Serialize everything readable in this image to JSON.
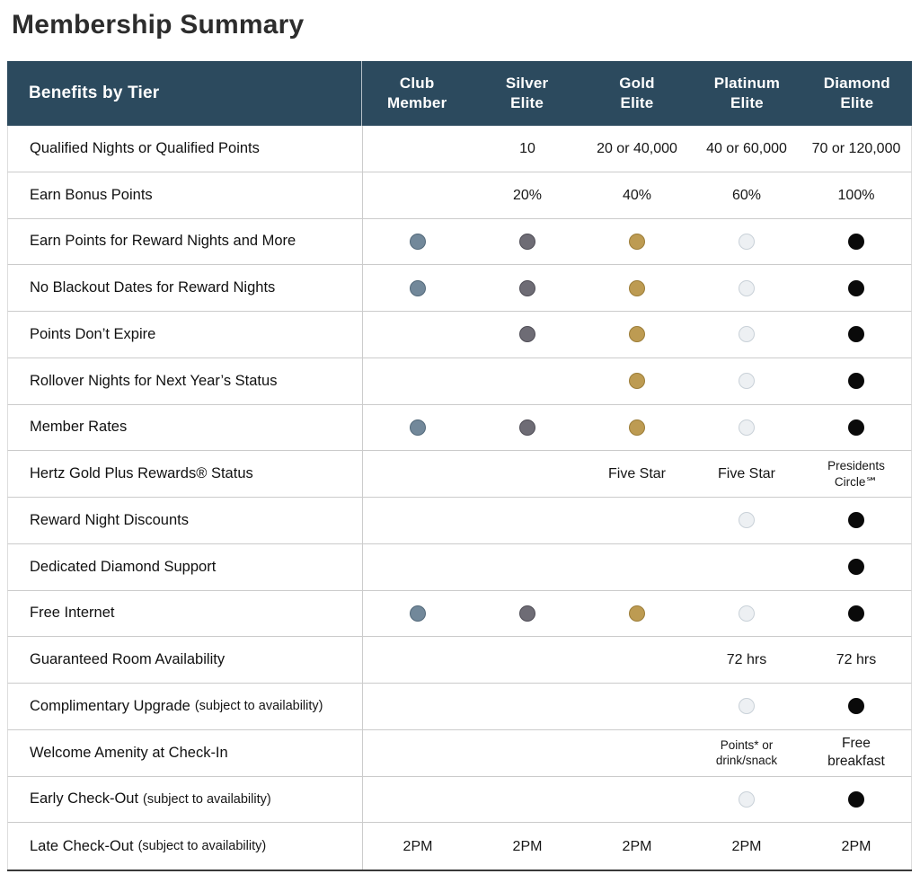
{
  "page": {
    "title": "Membership Summary"
  },
  "theme": {
    "header_bg": "#2C4A5E",
    "header_text": "#FFFFFF",
    "title_color": "#2D2D2D"
  },
  "table": {
    "header": {
      "benefits_label": "Benefits by Tier",
      "tiers": [
        {
          "id": "club",
          "lines": [
            "Club",
            "Member"
          ]
        },
        {
          "id": "silver",
          "lines": [
            "Silver",
            "Elite"
          ]
        },
        {
          "id": "gold",
          "lines": [
            "Gold",
            "Elite"
          ]
        },
        {
          "id": "platinum",
          "lines": [
            "Platinum",
            "Elite"
          ]
        },
        {
          "id": "diamond",
          "lines": [
            "Diamond",
            "Elite"
          ]
        }
      ]
    },
    "dot_colors": {
      "club": {
        "fill": "#72889A",
        "border": "#53697A"
      },
      "silver": {
        "fill": "#6E6C75",
        "border": "#4F4D56"
      },
      "gold": {
        "fill": "#BD9B52",
        "border": "#9C7D38"
      },
      "platinum": {
        "fill": "#EDF0F3",
        "border": "#C9D1D8"
      },
      "diamond": {
        "fill": "#0A0A0A",
        "border": "#0A0A0A"
      }
    },
    "rows": [
      {
        "label": "Qualified Nights or Qualified Points",
        "cells": [
          {
            "type": "empty"
          },
          {
            "type": "text",
            "lines": [
              "10"
            ]
          },
          {
            "type": "text",
            "lines": [
              "20 or 40,000"
            ]
          },
          {
            "type": "text",
            "lines": [
              "40 or 60,000"
            ]
          },
          {
            "type": "text",
            "lines": [
              "70 or 120,000"
            ]
          }
        ]
      },
      {
        "label": "Earn Bonus Points",
        "cells": [
          {
            "type": "empty"
          },
          {
            "type": "text",
            "lines": [
              "20%"
            ]
          },
          {
            "type": "text",
            "lines": [
              "40%"
            ]
          },
          {
            "type": "text",
            "lines": [
              "60%"
            ]
          },
          {
            "type": "text",
            "lines": [
              "100%"
            ]
          }
        ]
      },
      {
        "label": "Earn Points for Reward Nights and More",
        "cells": [
          {
            "type": "dot",
            "tier": "club"
          },
          {
            "type": "dot",
            "tier": "silver"
          },
          {
            "type": "dot",
            "tier": "gold"
          },
          {
            "type": "dot",
            "tier": "platinum"
          },
          {
            "type": "dot",
            "tier": "diamond"
          }
        ]
      },
      {
        "label": "No Blackout Dates for Reward Nights",
        "cells": [
          {
            "type": "dot",
            "tier": "club"
          },
          {
            "type": "dot",
            "tier": "silver"
          },
          {
            "type": "dot",
            "tier": "gold"
          },
          {
            "type": "dot",
            "tier": "platinum"
          },
          {
            "type": "dot",
            "tier": "diamond"
          }
        ]
      },
      {
        "label": "Points Don’t Expire",
        "cells": [
          {
            "type": "empty"
          },
          {
            "type": "dot",
            "tier": "silver"
          },
          {
            "type": "dot",
            "tier": "gold"
          },
          {
            "type": "dot",
            "tier": "platinum"
          },
          {
            "type": "dot",
            "tier": "diamond"
          }
        ]
      },
      {
        "label": "Rollover Nights for Next Year’s Status",
        "cells": [
          {
            "type": "empty"
          },
          {
            "type": "empty"
          },
          {
            "type": "dot",
            "tier": "gold"
          },
          {
            "type": "dot",
            "tier": "platinum"
          },
          {
            "type": "dot",
            "tier": "diamond"
          }
        ]
      },
      {
        "label": "Member Rates",
        "cells": [
          {
            "type": "dot",
            "tier": "club"
          },
          {
            "type": "dot",
            "tier": "silver"
          },
          {
            "type": "dot",
            "tier": "gold"
          },
          {
            "type": "dot",
            "tier": "platinum"
          },
          {
            "type": "dot",
            "tier": "diamond"
          }
        ]
      },
      {
        "label": "Hertz Gold Plus Rewards® Status",
        "cells": [
          {
            "type": "empty"
          },
          {
            "type": "empty"
          },
          {
            "type": "text",
            "lines": [
              "Five Star"
            ]
          },
          {
            "type": "text",
            "lines": [
              "Five Star"
            ]
          },
          {
            "type": "text",
            "style": "small",
            "lines": [
              "Presidents",
              "Circle℠"
            ]
          }
        ]
      },
      {
        "label": "Reward Night Discounts",
        "cells": [
          {
            "type": "empty"
          },
          {
            "type": "empty"
          },
          {
            "type": "empty"
          },
          {
            "type": "dot",
            "tier": "platinum"
          },
          {
            "type": "dot",
            "tier": "diamond"
          }
        ]
      },
      {
        "label": "Dedicated Diamond Support",
        "cells": [
          {
            "type": "empty"
          },
          {
            "type": "empty"
          },
          {
            "type": "empty"
          },
          {
            "type": "empty"
          },
          {
            "type": "dot",
            "tier": "diamond"
          }
        ]
      },
      {
        "label": "Free Internet",
        "cells": [
          {
            "type": "dot",
            "tier": "club"
          },
          {
            "type": "dot",
            "tier": "silver"
          },
          {
            "type": "dot",
            "tier": "gold"
          },
          {
            "type": "dot",
            "tier": "platinum"
          },
          {
            "type": "dot",
            "tier": "diamond"
          }
        ]
      },
      {
        "label": "Guaranteed Room Availability",
        "cells": [
          {
            "type": "empty"
          },
          {
            "type": "empty"
          },
          {
            "type": "empty"
          },
          {
            "type": "text",
            "lines": [
              "72 hrs"
            ]
          },
          {
            "type": "text",
            "lines": [
              "72 hrs"
            ]
          }
        ]
      },
      {
        "label": "Complimentary Upgrade",
        "note": "(subject to availability)",
        "cells": [
          {
            "type": "empty"
          },
          {
            "type": "empty"
          },
          {
            "type": "empty"
          },
          {
            "type": "dot",
            "tier": "platinum"
          },
          {
            "type": "dot",
            "tier": "diamond"
          }
        ]
      },
      {
        "label": "Welcome Amenity at Check-In",
        "cells": [
          {
            "type": "empty"
          },
          {
            "type": "empty"
          },
          {
            "type": "empty"
          },
          {
            "type": "text",
            "style": "small",
            "lines": [
              "Points* or",
              "drink/snack"
            ]
          },
          {
            "type": "text",
            "style": "emph",
            "lines": [
              "Free",
              "breakfast"
            ]
          }
        ]
      },
      {
        "label": "Early Check-Out",
        "note": "(subject to availability)",
        "cells": [
          {
            "type": "empty"
          },
          {
            "type": "empty"
          },
          {
            "type": "empty"
          },
          {
            "type": "dot",
            "tier": "platinum"
          },
          {
            "type": "dot",
            "tier": "diamond"
          }
        ]
      },
      {
        "label": "Late Check-Out",
        "note": "(subject to availability)",
        "cells": [
          {
            "type": "text",
            "lines": [
              "2PM"
            ]
          },
          {
            "type": "text",
            "lines": [
              "2PM"
            ]
          },
          {
            "type": "text",
            "lines": [
              "2PM"
            ]
          },
          {
            "type": "text",
            "lines": [
              "2PM"
            ]
          },
          {
            "type": "text",
            "lines": [
              "2PM"
            ]
          }
        ]
      }
    ]
  }
}
